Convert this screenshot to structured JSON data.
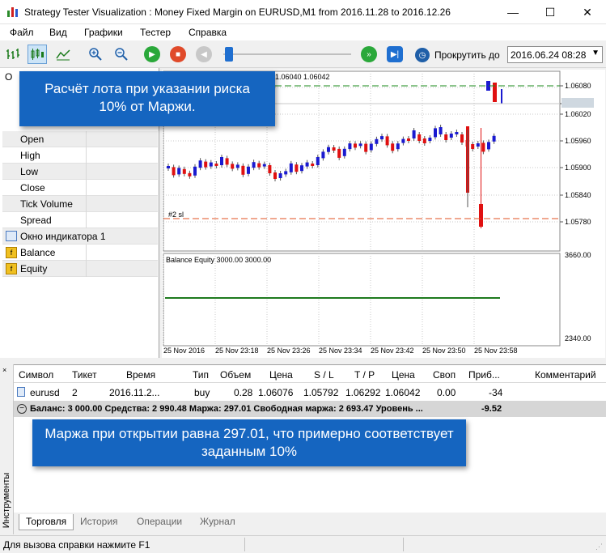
{
  "window": {
    "title": "Strategy Tester Visualization : Money Fixed Margin on EURUSD,M1 from 2016.11.28 to 2016.12.26",
    "minimize": "—",
    "maximize": "☐",
    "close": "✕"
  },
  "menu": [
    "Файл",
    "Вид",
    "Графики",
    "Тестер",
    "Справка"
  ],
  "toolbar": {
    "scroll_label": "Прокрутить до",
    "date_value": "2016.06.24 08:28"
  },
  "left_panel": {
    "header_fragment": "О",
    "rows": [
      "Open",
      "High",
      "Low",
      "Close",
      "Tick Volume",
      "Spread"
    ],
    "indicator_window": "Окно индикатора 1",
    "indicator_rows": [
      "Balance",
      "Equity"
    ]
  },
  "callouts": {
    "top": "Расчёт лота при указании риска 10% от Маржи.",
    "bottom": "Маржа при открытии равна 297.01, что примерно соответствует заданным 10%"
  },
  "chart": {
    "price_labels": [
      "1.06080",
      "1.06042",
      "1.06020",
      "1.05960",
      "1.05900",
      "1.05840",
      "1.05780"
    ],
    "price_header": "1.06040 1.06042",
    "sl_label": "#2 sl",
    "indicator_title": "Balance Equity  3000.00 3000.00",
    "indicator_labels": [
      "3660.00",
      "2340.00"
    ],
    "time_labels": [
      "25 Nov 2016",
      "25 Nov 23:18",
      "25 Nov 23:26",
      "25 Nov 23:34",
      "25 Nov 23:42",
      "25 Nov 23:50",
      "25 Nov 23:58"
    ],
    "colors": {
      "bull": "#1a1ad0",
      "bear": "#e01010",
      "equity_line": "#1e7a1e",
      "grid": "#c8c8c8"
    }
  },
  "trade_table": {
    "headers": [
      "Символ",
      "Тикет",
      "Время",
      "Тип",
      "Объем",
      "Цена",
      "S / L",
      "T / P",
      "Цена",
      "Своп",
      "Приб...",
      "Комментарий"
    ],
    "row": [
      "eurusd",
      "2",
      "2016.11.2...",
      "buy",
      "0.28",
      "1.06076",
      "1.05792",
      "1.06292",
      "1.06042",
      "0.00",
      "-34",
      ""
    ],
    "summary": "Баланс: 3 000.00  Средства: 2 990.48  Маржа: 297.01  Свободная маржа: 2 693.47  Уровень ...",
    "summary_profit": "-9.52"
  },
  "side_tab": "Инструменты",
  "tabs": [
    "Торговля",
    "История",
    "Операции",
    "Журнал"
  ],
  "status": "Для вызова справки нажмите F1"
}
